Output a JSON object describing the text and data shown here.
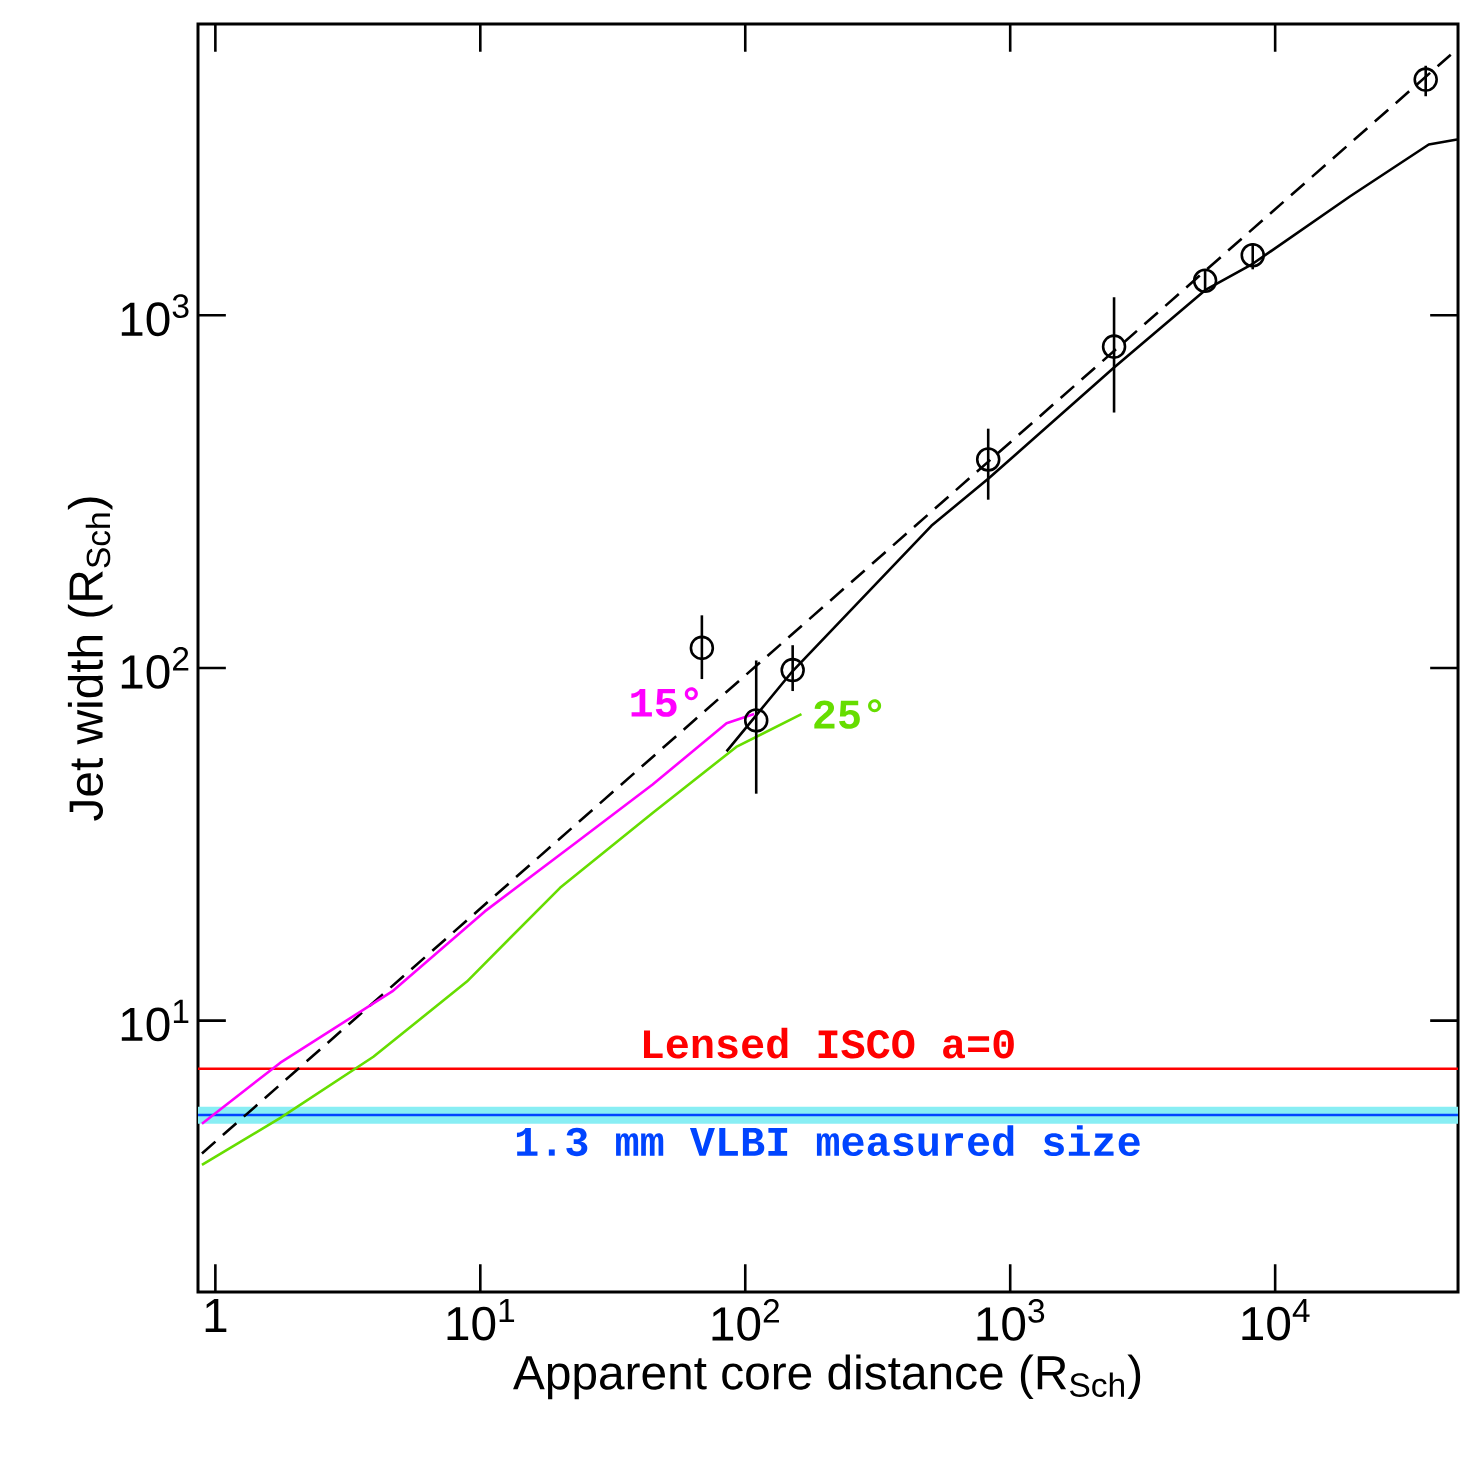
{
  "chart_data": {
    "type": "line",
    "xlabel": "Apparent core distance (R$_{Sch}$)",
    "ylabel": "Jet width (R$_{Sch}$)",
    "log": "xy",
    "grid": false,
    "xlim": [
      0.86,
      49000
    ],
    "ylim": [
      1.7,
      6700
    ],
    "xticks": [
      1,
      {
        "value": 10,
        "label": "10$^{1}$"
      },
      {
        "value": 100,
        "label": "10$^{2}$"
      },
      {
        "value": 1000,
        "label": "10$^{3}$"
      },
      {
        "value": 10000,
        "label": "10$^{4}$"
      }
    ],
    "yticks": [
      {
        "value": 10,
        "label": "10$^{1}$"
      },
      {
        "value": 100,
        "label": "10$^{2}$"
      },
      {
        "value": 1000,
        "label": "10$^{3}$"
      }
    ],
    "series": [
      {
        "line_style": "dashed",
        "color": "#000000",
        "x": [
          0.89,
          46000
        ],
        "values": [
          4.2,
          5480
        ]
      },
      {
        "line_style": "solid",
        "color": "#000000",
        "x": [
          85,
          151,
          504,
          826,
          2466,
          5440,
          8230,
          19200,
          38000,
          48600
        ],
        "values": [
          58,
          98,
          253,
          344,
          711,
          1178,
          1400,
          2175,
          3050,
          3150
        ]
      },
      {
        "name": "15°",
        "line_style": "solid",
        "color": "#ff00ff",
        "x": [
          0.89,
          1.76,
          4.65,
          10.4,
          23.4,
          44.7,
          85,
          108
        ],
        "values": [
          5.1,
          7.6,
          12.1,
          20.4,
          32.3,
          46.7,
          69.7,
          74
        ]
      },
      {
        "name": "25°",
        "line_style": "solid",
        "color": "#66dd00",
        "x": [
          0.89,
          1.76,
          3.95,
          8.9,
          20,
          44.7,
          92.5,
          163
        ],
        "values": [
          3.9,
          5.3,
          7.9,
          12.9,
          23.8,
          38.8,
          59.7,
          74
        ]
      },
      {
        "type": "scatter",
        "marker": "circle",
        "color": "#000000",
        "x": [
          68.6,
          110,
          151,
          826,
          2466,
          5440,
          8230,
          37000
        ],
        "values": [
          114,
          71,
          98.6,
          390,
          815,
          1253,
          1480,
          4660
        ],
        "errors": [
          [
            93,
            141
          ],
          [
            44,
            105
          ],
          [
            86,
            116
          ],
          [
            300,
            477
          ],
          [
            530,
            1125
          ],
          [
            1162,
            1335
          ],
          [
            1350,
            1600
          ],
          [
            4180,
            5100
          ]
        ]
      }
    ],
    "annotations": [
      "Lensed ISCO a=0"
    ],
    "ref_lines": [
      {
        "axis": "y",
        "value": 7.3,
        "color": "#ff0000"
      },
      {
        "axis": "y",
        "value": 5.4,
        "label": "1.3 mm VLBI measured size",
        "color": "#0044ff"
      }
    ],
    "bands": [
      {
        "axis": "y",
        "from": 5.1,
        "to": 5.7,
        "color": "#88eef4"
      }
    ]
  }
}
